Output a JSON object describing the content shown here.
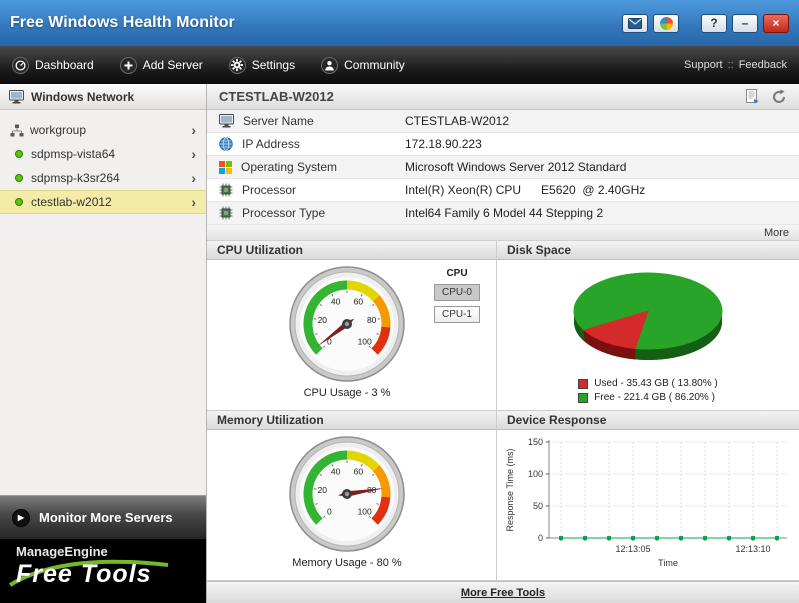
{
  "titlebar": {
    "title": "Free Windows Health Monitor",
    "help": "?",
    "minimize": "–",
    "close": "×"
  },
  "navbar": {
    "items": [
      {
        "label": "Dashboard"
      },
      {
        "label": "Add Server"
      },
      {
        "label": "Settings"
      },
      {
        "label": "Community"
      }
    ],
    "support": "Support",
    "separator": "::",
    "feedback": "Feedback"
  },
  "sidebar": {
    "header": "Windows Network",
    "tree": [
      {
        "label": "workgroup"
      },
      {
        "label": "sdpmsp-vista64"
      },
      {
        "label": "sdpmsp-k3sr264"
      },
      {
        "label": "ctestlab-w2012"
      }
    ],
    "status_color": "#5bc40d",
    "monitor_more": "Monitor More Servers",
    "logo_brand": "ManageEngine",
    "logo_product": "Free Tools",
    "accent_green": "#76b82a"
  },
  "main": {
    "header": "CTESTLAB-W2012",
    "info_rows": [
      {
        "label": "Server Name",
        "value": "CTESTLAB-W2012"
      },
      {
        "label": "IP Address",
        "value": "172.18.90.223"
      },
      {
        "label": "Operating System",
        "value": "Microsoft Windows Server 2012 Standard"
      },
      {
        "label": "Processor",
        "value": "Intel(R) Xeon(R) CPU      E5620  @ 2.40GHz"
      },
      {
        "label": "Processor Type",
        "value": "Intel64 Family 6 Model 44 Stepping 2"
      }
    ],
    "more": "More",
    "more_free_tools": "More Free Tools"
  },
  "panels": {
    "cpu": {
      "title": "CPU Utilization",
      "caption": "CPU Usage - 3 %",
      "selector_label": "CPU",
      "buttons": [
        {
          "label": "CPU-0",
          "selected": true
        },
        {
          "label": "CPU-1",
          "selected": false
        }
      ]
    },
    "disk": {
      "title": "Disk Space",
      "legend": [
        {
          "label": "Used - 35.43 GB ( 13.80% )",
          "color": "#d42a2a"
        },
        {
          "label": "Free - 221.4 GB ( 86.20% )",
          "color": "#28a428"
        }
      ]
    },
    "memory": {
      "title": "Memory Utilization",
      "caption": "Memory Usage - 80 %"
    },
    "response": {
      "title": "Device Response"
    }
  },
  "chart_data": [
    {
      "type": "gauge",
      "name": "cpu-gauge",
      "title": "CPU Utilization",
      "value": 3,
      "min": 0,
      "max": 100,
      "unit": "%",
      "ticks": [
        0,
        20,
        40,
        60,
        80,
        100
      ],
      "bands": [
        {
          "from": 0,
          "to": 50,
          "color": "#33b533"
        },
        {
          "from": 50,
          "to": 68,
          "color": "#e2d500"
        },
        {
          "from": 68,
          "to": 85,
          "color": "#f59a00"
        },
        {
          "from": 85,
          "to": 100,
          "color": "#e03010"
        }
      ]
    },
    {
      "type": "gauge",
      "name": "memory-gauge",
      "title": "Memory Utilization",
      "value": 80,
      "min": 0,
      "max": 100,
      "unit": "%",
      "ticks": [
        0,
        20,
        40,
        60,
        80,
        100
      ],
      "bands": [
        {
          "from": 0,
          "to": 50,
          "color": "#33b533"
        },
        {
          "from": 50,
          "to": 68,
          "color": "#e2d500"
        },
        {
          "from": 68,
          "to": 85,
          "color": "#f59a00"
        },
        {
          "from": 85,
          "to": 100,
          "color": "#e03010"
        }
      ]
    },
    {
      "type": "pie",
      "name": "disk-pie",
      "title": "Disk Space",
      "slices": [
        {
          "label": "Used",
          "value_gb": 35.43,
          "percent": 13.8,
          "color": "#d42a2a",
          "dark": "#7a1010"
        },
        {
          "label": "Free",
          "value_gb": 221.4,
          "percent": 86.2,
          "color": "#28a428",
          "dark": "#145f14"
        }
      ]
    },
    {
      "type": "line",
      "name": "device-response",
      "title": "Device Response",
      "ylabel": "Response Time (ms)",
      "xlabel": "Time",
      "ylim": [
        0,
        150
      ],
      "yticks": [
        0,
        50,
        100,
        150
      ],
      "x_labels": [
        "",
        "",
        "",
        "12:13:05",
        "",
        "",
        "",
        "",
        "12:13:10",
        ""
      ],
      "values": [
        0,
        0,
        0,
        0,
        0,
        0,
        0,
        0,
        0,
        0
      ],
      "marker_color": "#00a550",
      "grid": true
    }
  ]
}
